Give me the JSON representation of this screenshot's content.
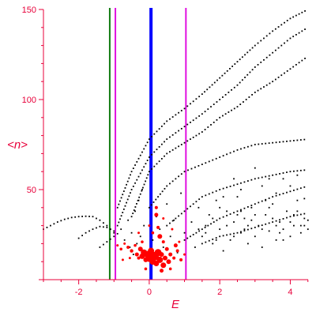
{
  "chart_data": {
    "type": "scatter",
    "xlabel": "E",
    "ylabel": "<n>",
    "xlim": [
      -3.0,
      4.55
    ],
    "ylim": [
      0,
      150
    ],
    "xticks": [
      -2,
      0,
      2,
      4
    ],
    "yticks": [
      50,
      100,
      150
    ],
    "colors": {
      "axis": "#e8003a",
      "points": "#000000",
      "highlight": "#ff0000",
      "line_green": "#117a11",
      "line_magenta": "#e010e0",
      "line_blue": "#0000ff"
    },
    "vertical_lines": [
      {
        "x": -1.12,
        "color": "#117a11",
        "width": 2
      },
      {
        "x": -0.96,
        "color": "#e010e0",
        "width": 2
      },
      {
        "x": 0.05,
        "color": "#0000ff",
        "width": 4
      },
      {
        "x": 1.04,
        "color": "#e010e0",
        "width": 2
      }
    ],
    "curves": [
      {
        "points": [
          [
            -3.0,
            28
          ],
          [
            -2.8,
            30
          ],
          [
            -2.6,
            32
          ],
          [
            -2.4,
            33.5
          ],
          [
            -2.2,
            34.5
          ],
          [
            -2.0,
            35
          ],
          [
            -1.8,
            35.2
          ],
          [
            -1.6,
            35
          ],
          [
            -1.5,
            34
          ],
          [
            -1.4,
            33
          ],
          [
            -1.3,
            31.5
          ],
          [
            -1.2,
            30
          ],
          [
            -1.1,
            28
          ],
          [
            -1.0,
            26
          ],
          [
            -0.9,
            24
          ]
        ]
      },
      {
        "points": [
          [
            -2.0,
            23
          ],
          [
            -1.8,
            26
          ],
          [
            -1.6,
            28
          ],
          [
            -1.4,
            29.5
          ],
          [
            -1.2,
            29
          ],
          [
            -1.0,
            27
          ],
          [
            -0.9,
            25
          ]
        ]
      },
      {
        "points": [
          [
            -1.4,
            18
          ],
          [
            -1.2,
            21
          ],
          [
            -1.0,
            24
          ],
          [
            -0.8,
            27
          ]
        ]
      },
      {
        "points": [
          [
            -0.9,
            40
          ],
          [
            -0.5,
            60
          ],
          [
            0.0,
            78
          ],
          [
            0.5,
            88
          ],
          [
            1.0,
            95
          ],
          [
            1.5,
            103
          ],
          [
            2.0,
            112
          ],
          [
            2.5,
            121
          ],
          [
            3.0,
            130
          ],
          [
            3.5,
            138
          ],
          [
            4.0,
            145
          ],
          [
            4.5,
            150
          ]
        ]
      },
      {
        "points": [
          [
            -0.9,
            30
          ],
          [
            -0.5,
            50
          ],
          [
            0.0,
            68
          ],
          [
            0.5,
            78
          ],
          [
            1.0,
            85
          ],
          [
            1.5,
            92
          ],
          [
            2.0,
            100
          ],
          [
            2.5,
            108
          ],
          [
            3.0,
            118
          ],
          [
            3.5,
            126
          ],
          [
            4.0,
            134
          ],
          [
            4.5,
            140
          ]
        ]
      },
      {
        "points": [
          [
            -0.5,
            35
          ],
          [
            0.0,
            60
          ],
          [
            0.5,
            70
          ],
          [
            1.0,
            76
          ],
          [
            1.5,
            82
          ],
          [
            2.0,
            90
          ],
          [
            2.5,
            96
          ],
          [
            3.0,
            104
          ],
          [
            3.5,
            110
          ],
          [
            4.0,
            117
          ],
          [
            4.5,
            124
          ]
        ]
      },
      {
        "points": [
          [
            0.0,
            40
          ],
          [
            0.5,
            52
          ],
          [
            1.0,
            60
          ],
          [
            1.5,
            64
          ],
          [
            2.0,
            68
          ],
          [
            2.5,
            72
          ],
          [
            3.0,
            75
          ],
          [
            3.5,
            76
          ],
          [
            4.0,
            77
          ],
          [
            4.5,
            78
          ]
        ]
      },
      {
        "points": [
          [
            0.5,
            30
          ],
          [
            1.0,
            38
          ],
          [
            1.5,
            46
          ],
          [
            2.0,
            50
          ],
          [
            2.5,
            53
          ],
          [
            3.0,
            56
          ],
          [
            3.5,
            58
          ],
          [
            4.0,
            60
          ],
          [
            4.5,
            61
          ]
        ]
      },
      {
        "points": [
          [
            1.0,
            22
          ],
          [
            1.5,
            28
          ],
          [
            2.0,
            34
          ],
          [
            2.5,
            38
          ],
          [
            3.0,
            42
          ],
          [
            3.5,
            46
          ],
          [
            4.0,
            49
          ],
          [
            4.5,
            52
          ]
        ]
      },
      {
        "points": [
          [
            1.5,
            20
          ],
          [
            2.0,
            24
          ],
          [
            2.5,
            26
          ],
          [
            3.0,
            29
          ],
          [
            3.5,
            32
          ],
          [
            4.0,
            35
          ],
          [
            4.5,
            37
          ]
        ]
      }
    ],
    "scatter_black": [
      [
        -0.8,
        28
      ],
      [
        -0.7,
        22
      ],
      [
        -0.6,
        33
      ],
      [
        -0.55,
        18
      ],
      [
        -0.5,
        26
      ],
      [
        -0.45,
        14
      ],
      [
        -0.4,
        38
      ],
      [
        -0.35,
        20
      ],
      [
        -0.3,
        44
      ],
      [
        -0.25,
        24
      ],
      [
        -0.2,
        50
      ],
      [
        -0.15,
        30
      ],
      [
        -0.1,
        16
      ],
      [
        0.1,
        22
      ],
      [
        0.2,
        35
      ],
      [
        0.3,
        28
      ],
      [
        0.4,
        18
      ],
      [
        0.5,
        42
      ],
      [
        0.6,
        24
      ],
      [
        0.7,
        33
      ],
      [
        0.8,
        15
      ],
      [
        0.9,
        48
      ],
      [
        1.0,
        26
      ],
      [
        1.2,
        32
      ],
      [
        1.3,
        18
      ],
      [
        1.4,
        40
      ],
      [
        1.5,
        24
      ],
      [
        1.6,
        30
      ],
      [
        1.7,
        36
      ],
      [
        1.8,
        20
      ],
      [
        1.9,
        44
      ],
      [
        2.0,
        28
      ],
      [
        2.1,
        16
      ],
      [
        2.2,
        38
      ],
      [
        2.3,
        22
      ],
      [
        2.4,
        32
      ],
      [
        2.5,
        46
      ],
      [
        2.6,
        26
      ],
      [
        2.7,
        34
      ],
      [
        2.8,
        20
      ],
      [
        2.9,
        40
      ],
      [
        3.0,
        24
      ],
      [
        3.1,
        30
      ],
      [
        3.2,
        18
      ],
      [
        3.3,
        36
      ],
      [
        3.4,
        27
      ],
      [
        3.5,
        42
      ],
      [
        3.6,
        22
      ],
      [
        3.7,
        32
      ],
      [
        3.8,
        28
      ],
      [
        3.9,
        38
      ],
      [
        4.0,
        24
      ],
      [
        4.1,
        30
      ],
      [
        4.2,
        44
      ],
      [
        4.3,
        26
      ],
      [
        4.4,
        34
      ],
      [
        4.5,
        28
      ],
      [
        1.6,
        26
      ],
      [
        1.8,
        34
      ],
      [
        2.0,
        40
      ],
      [
        2.2,
        30
      ],
      [
        2.4,
        24
      ],
      [
        2.6,
        38
      ],
      [
        2.8,
        30
      ],
      [
        3.0,
        36
      ],
      [
        3.2,
        28
      ],
      [
        3.4,
        40
      ],
      [
        3.6,
        30
      ],
      [
        3.8,
        22
      ],
      [
        4.0,
        32
      ],
      [
        4.2,
        38
      ],
      [
        4.4,
        30
      ],
      [
        2.1,
        46
      ],
      [
        2.5,
        36
      ],
      [
        2.9,
        33
      ],
      [
        3.3,
        44
      ],
      [
        3.7,
        26
      ],
      [
        4.1,
        36
      ],
      [
        4.5,
        33
      ],
      [
        1.4,
        28
      ],
      [
        1.9,
        22
      ],
      [
        2.7,
        28
      ],
      [
        3.5,
        34
      ],
      [
        4.3,
        30
      ],
      [
        3.0,
        62
      ],
      [
        3.2,
        52
      ],
      [
        3.6,
        48
      ],
      [
        4.0,
        52
      ],
      [
        4.4,
        45
      ],
      [
        3.8,
        56
      ],
      [
        2.4,
        56
      ],
      [
        2.6,
        50
      ],
      [
        3.4,
        56
      ],
      [
        4.2,
        58
      ]
    ],
    "scatter_red": [
      {
        "x": -0.9,
        "y": 19,
        "s": 1.5
      },
      {
        "x": -0.8,
        "y": 17,
        "s": 1.8
      },
      {
        "x": -0.7,
        "y": 20,
        "s": 1.5
      },
      {
        "x": -0.6,
        "y": 18,
        "s": 2
      },
      {
        "x": -0.5,
        "y": 16,
        "s": 2.2
      },
      {
        "x": -0.4,
        "y": 19,
        "s": 1.8
      },
      {
        "x": -0.35,
        "y": 14,
        "s": 2.5
      },
      {
        "x": -0.3,
        "y": 12,
        "s": 2
      },
      {
        "x": -0.25,
        "y": 17,
        "s": 3
      },
      {
        "x": -0.2,
        "y": 13,
        "s": 3.5
      },
      {
        "x": -0.15,
        "y": 15,
        "s": 4
      },
      {
        "x": -0.1,
        "y": 11,
        "s": 3
      },
      {
        "x": -0.05,
        "y": 14,
        "s": 4.5
      },
      {
        "x": 0.0,
        "y": 12,
        "s": 5
      },
      {
        "x": 0.05,
        "y": 16,
        "s": 4
      },
      {
        "x": 0.1,
        "y": 10,
        "s": 4
      },
      {
        "x": 0.15,
        "y": 13,
        "s": 5.5
      },
      {
        "x": 0.2,
        "y": 9,
        "s": 3.5
      },
      {
        "x": 0.25,
        "y": 15,
        "s": 4.5
      },
      {
        "x": 0.3,
        "y": 11,
        "s": 4
      },
      {
        "x": 0.35,
        "y": 14,
        "s": 3
      },
      {
        "x": 0.4,
        "y": 8,
        "s": 3.5
      },
      {
        "x": 0.45,
        "y": 12,
        "s": 3
      },
      {
        "x": 0.5,
        "y": 17,
        "s": 2.5
      },
      {
        "x": 0.55,
        "y": 10,
        "s": 3
      },
      {
        "x": 0.6,
        "y": 14,
        "s": 2.5
      },
      {
        "x": 0.7,
        "y": 12,
        "s": 2
      },
      {
        "x": 0.8,
        "y": 16,
        "s": 2
      },
      {
        "x": 0.9,
        "y": 11,
        "s": 2
      },
      {
        "x": 1.0,
        "y": 14,
        "s": 1.5
      },
      {
        "x": 0.2,
        "y": 36,
        "s": 2.5
      },
      {
        "x": 0.2,
        "y": 40,
        "s": 2
      },
      {
        "x": 0.25,
        "y": 29,
        "s": 2
      },
      {
        "x": 0.3,
        "y": 24,
        "s": 3
      },
      {
        "x": 0.4,
        "y": 21,
        "s": 2
      },
      {
        "x": 0.1,
        "y": 26,
        "s": 1.8
      },
      {
        "x": 0.75,
        "y": 19,
        "s": 2.5
      },
      {
        "x": 0.35,
        "y": 5,
        "s": 2.5
      },
      {
        "x": -0.1,
        "y": 6,
        "s": 1.8
      },
      {
        "x": 0.6,
        "y": 6,
        "s": 1.8
      },
      {
        "x": -0.55,
        "y": 12,
        "s": 1.5
      },
      {
        "x": -0.75,
        "y": 11,
        "s": 1.5
      },
      {
        "x": 0.85,
        "y": 21,
        "s": 1.5
      },
      {
        "x": -0.2,
        "y": 21,
        "s": 1.8
      },
      {
        "x": 0.0,
        "y": 30,
        "s": 1.5
      },
      {
        "x": 0.4,
        "y": 34,
        "s": 1.5
      },
      {
        "x": -0.3,
        "y": 26,
        "s": 1.5
      },
      {
        "x": 0.65,
        "y": 28,
        "s": 1.5
      }
    ]
  }
}
